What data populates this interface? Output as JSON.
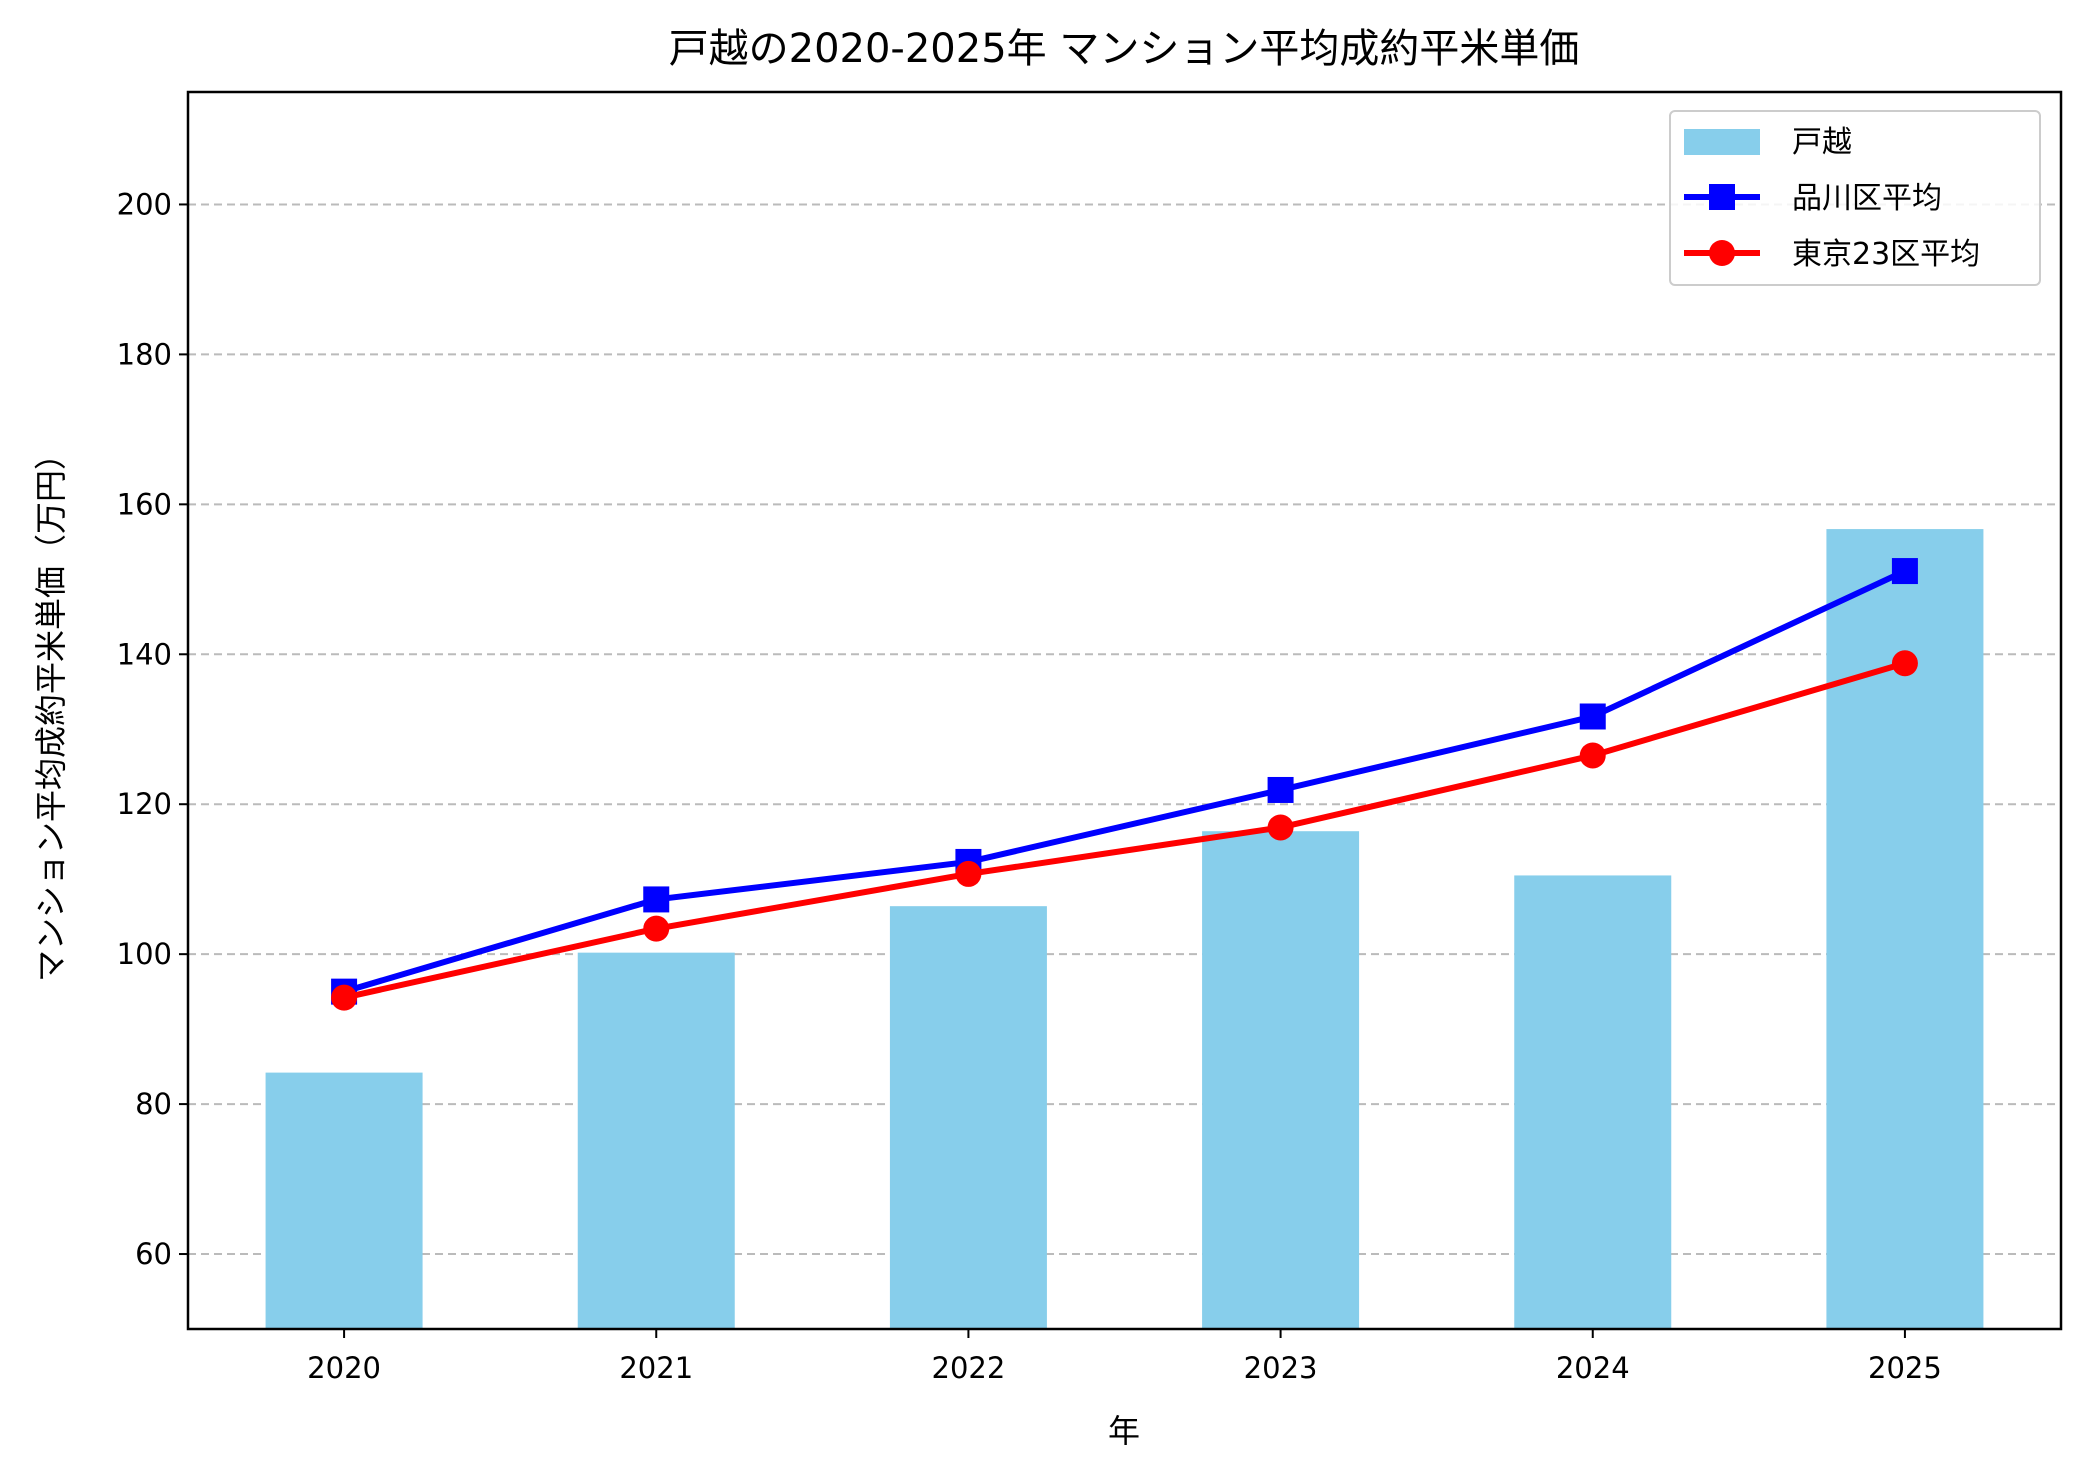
{
  "chart_data": {
    "type": "bar+line",
    "title": "戸越の2020-2025年 マンション平均成約平米単価",
    "xlabel": "年",
    "ylabel": "マンション平均成約平米単価（万円）",
    "categories": [
      "2020",
      "2021",
      "2022",
      "2023",
      "2024",
      "2025"
    ],
    "ylim": [
      50,
      215
    ],
    "yticks": [
      60,
      80,
      100,
      120,
      140,
      160,
      180,
      200
    ],
    "grid": "y-dashed",
    "legend_position": "top-right",
    "series": [
      {
        "name": "戸越",
        "kind": "bar",
        "color": "#87CEEB",
        "values": [
          84.2,
          100.2,
          106.4,
          116.4,
          110.5,
          156.7
        ]
      },
      {
        "name": "品川区平均",
        "kind": "line",
        "marker": "square",
        "color": "#0000FF",
        "values": [
          95.0,
          107.3,
          112.3,
          121.9,
          131.7,
          151.1
        ]
      },
      {
        "name": "東京23区平均",
        "kind": "line",
        "marker": "circle",
        "color": "#FF0000",
        "values": [
          94.2,
          103.4,
          110.7,
          116.9,
          126.5,
          138.8
        ]
      }
    ]
  }
}
